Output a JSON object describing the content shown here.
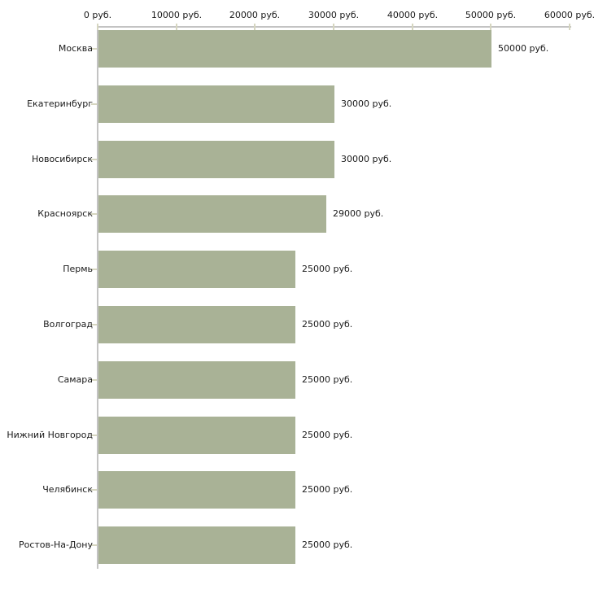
{
  "chart_data": {
    "type": "bar",
    "orientation": "horizontal",
    "title": "",
    "categories": [
      "Москва",
      "Екатеринбург",
      "Новосибирск",
      "Красноярск",
      "Пермь",
      "Волгоград",
      "Самара",
      "Нижний Новгород",
      "Челябинск",
      "Ростов-На-Дону"
    ],
    "values": [
      50000,
      30000,
      30000,
      29000,
      25000,
      25000,
      25000,
      25000,
      25000,
      25000
    ],
    "value_labels": [
      "50000 руб.",
      "30000 руб.",
      "30000 руб.",
      "29000 руб.",
      "25000 руб.",
      "25000 руб.",
      "25000 руб.",
      "25000 руб.",
      "25000 руб.",
      "25000 руб."
    ],
    "x_tick_values": [
      0,
      10000,
      20000,
      30000,
      40000,
      50000,
      60000
    ],
    "x_tick_labels": [
      "0 руб.",
      "10000 руб.",
      "20000 руб.",
      "30000 руб.",
      "40000 руб.",
      "50000 руб.",
      "60000 руб."
    ],
    "xlim": [
      0,
      60000
    ],
    "unit": "руб.",
    "grid": false,
    "legend": false,
    "axis_position": "top",
    "colors": {
      "bar": "#A9B296",
      "axis_line": "#C3C3C3",
      "tick": "#D6D6C0",
      "text": "#1A1A1A",
      "background": "#FFFFFF"
    }
  }
}
